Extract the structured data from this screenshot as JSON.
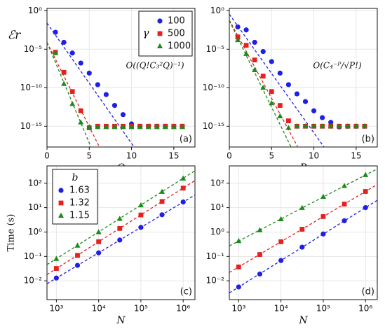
{
  "chart_data": [
    {
      "type": "scatter",
      "xlabel": "Q",
      "ylabel": "ℰr",
      "panel_label": "(a)",
      "annotation": "O((Q!C₃²Q)⁻¹)",
      "xlim": [
        0,
        17.5
      ],
      "xticks": [
        0,
        5,
        10,
        15
      ],
      "ylog": true,
      "ylim": [
        2e-18,
        2
      ],
      "yticks": [
        {
          "value": 1,
          "label": "10⁰"
        },
        {
          "value": 1e-05,
          "label": "10⁻⁵"
        },
        {
          "value": 1e-10,
          "label": "10⁻¹⁰"
        },
        {
          "value": 1e-15,
          "label": "10⁻¹⁵"
        }
      ],
      "grid": true,
      "legend": {
        "title": "γ",
        "corner": "upper right"
      },
      "x": [
        1,
        2,
        3,
        4,
        5,
        6,
        7,
        8,
        9,
        10,
        11,
        12,
        13,
        14,
        15,
        16
      ],
      "series": [
        {
          "name": "100",
          "color": "#1f1fe6",
          "marker": "circle",
          "values": [
            0.0016,
            7.9e-05,
            3.2e-06,
            1.6e-07,
            7.9e-09,
            2.5e-10,
            1.3e-11,
            5e-13,
            3.2e-14,
            2e-15,
            1e-15,
            1e-15,
            1e-15,
            1e-15,
            1e-15,
            1e-15
          ]
        },
        {
          "name": "500",
          "color": "#e61f1f",
          "marker": "square",
          "values": [
            4e-06,
            1e-08,
            3.2e-11,
            1e-13,
            6.3e-16,
            1e-15,
            1e-15,
            1e-15,
            1e-15,
            1e-15,
            1e-15,
            1e-15,
            1e-15,
            1e-15,
            1e-15,
            1e-15
          ]
        },
        {
          "name": "1000",
          "color": "#1a8a1a",
          "marker": "triangle",
          "values": [
            3.2e-06,
            3.2e-10,
            7.9e-13,
            3.2e-15,
            8e-16,
            8e-16,
            8e-16,
            8e-16,
            8e-16,
            8e-16,
            8e-16,
            8e-16,
            8e-16,
            8e-16,
            8e-16,
            8e-16
          ]
        }
      ],
      "fits": [
        {
          "color": "#1f1fe6",
          "x": [
            0,
            10.3
          ],
          "values": [
            0.025,
            2e-18
          ]
        },
        {
          "color": "#e61f1f",
          "x": [
            0,
            6.2
          ],
          "values": [
            7.9e-05,
            2e-18
          ]
        },
        {
          "color": "#1a8a1a",
          "x": [
            0,
            5.2
          ],
          "values": [
            7.9e-05,
            2e-18
          ]
        }
      ]
    },
    {
      "type": "scatter",
      "xlabel": "P",
      "panel_label": "(b)",
      "annotation": "O(C₄⁻ᴾ/√P!)",
      "xlim": [
        0,
        17.5
      ],
      "xticks": [
        0,
        5,
        10,
        15
      ],
      "ylog": true,
      "ylim": [
        2e-18,
        2
      ],
      "yticks": [
        {
          "value": 1,
          "label": "10⁰"
        },
        {
          "value": 1e-05,
          "label": "10⁻⁵"
        },
        {
          "value": 1e-10,
          "label": "10⁻¹⁰"
        },
        {
          "value": 1e-15,
          "label": "10⁻¹⁵"
        }
      ],
      "grid": true,
      "x": [
        1,
        2,
        3,
        4,
        5,
        6,
        7,
        8,
        9,
        10,
        11,
        12,
        13,
        14,
        15,
        16
      ],
      "series": [
        {
          "color": "#1f1fe6",
          "marker": "circle",
          "values": [
            0.0079,
            0.0032,
            7.9e-05,
            5e-06,
            2.5e-07,
            7.9e-09,
            2.5e-10,
            1.6e-11,
            1.6e-12,
            1e-13,
            1.3e-14,
            3.2e-15,
            8e-16,
            1e-15,
            1e-15,
            1e-15
          ]
        },
        {
          "color": "#e61f1f",
          "marker": "square",
          "values": [
            0.0004,
            3.2e-05,
            4e-07,
            3.2e-09,
            3.2e-11,
            5e-13,
            5e-15,
            1e-15,
            1e-15,
            1e-15,
            1e-15,
            1e-15,
            1e-15,
            1e-15,
            1e-15,
            1e-15
          ]
        },
        {
          "color": "#1a8a1a",
          "marker": "triangle",
          "values": [
            0.00016,
            2.5e-06,
            2e-08,
            1e-10,
            1e-12,
            2e-14,
            6.3e-16,
            1e-15,
            1e-15,
            1e-15,
            1e-15,
            1e-15,
            1e-15,
            1e-15,
            1e-15,
            1e-15
          ]
        }
      ],
      "fits": [
        {
          "color": "#1f1fe6",
          "x": [
            0,
            11.2
          ],
          "values": [
            0.35,
            2e-18
          ]
        },
        {
          "color": "#e61f1f",
          "x": [
            0,
            8.1
          ],
          "values": [
            0.063,
            2e-18
          ]
        },
        {
          "color": "#1a8a1a",
          "x": [
            0,
            7.3
          ],
          "values": [
            0.05,
            2e-18
          ]
        }
      ]
    },
    {
      "type": "scatter",
      "xlabel": "N",
      "ylabel": "Time (s)",
      "panel_label": "(c)",
      "xlog": true,
      "xlim": [
        600,
        1900000
      ],
      "xticks": [
        {
          "value": 1000,
          "label": "10³"
        },
        {
          "value": 10000,
          "label": "10⁴"
        },
        {
          "value": 100000,
          "label": "10⁵"
        },
        {
          "value": 1000000,
          "label": "10⁶"
        }
      ],
      "ylog": true,
      "ylim": [
        0.0017,
        513
      ],
      "yticks": [
        {
          "value": 0.01,
          "label": "10⁻²"
        },
        {
          "value": 0.1,
          "label": "10⁻¹"
        },
        {
          "value": 1,
          "label": "10⁰"
        },
        {
          "value": 10,
          "label": "10¹"
        },
        {
          "value": 100,
          "label": "10²"
        }
      ],
      "grid": true,
      "legend": {
        "title": "b",
        "corner": "upper left"
      },
      "x": [
        1000,
        3162,
        10000,
        31623,
        100000,
        316228,
        1000000
      ],
      "series": [
        {
          "name": "1.63",
          "color": "#1f1fe6",
          "marker": "circle",
          "values": [
            0.013,
            0.043,
            0.14,
            0.47,
            1.55,
            5.1,
            17
          ]
        },
        {
          "name": "1.32",
          "color": "#e61f1f",
          "marker": "square",
          "values": [
            0.032,
            0.11,
            0.4,
            1.4,
            5.0,
            17.8,
            63
          ]
        },
        {
          "name": "1.15",
          "color": "#1a8a1a",
          "marker": "triangle",
          "values": [
            0.08,
            0.28,
            1.0,
            3.5,
            12.6,
            45,
            158
          ]
        }
      ],
      "fits": [
        {
          "color": "#1f1fe6",
          "x": [
            600,
            1900000
          ],
          "values": [
            0.0076,
            33
          ]
        },
        {
          "color": "#e61f1f",
          "x": [
            600,
            1900000
          ],
          "values": [
            0.018,
            129
          ]
        },
        {
          "color": "#1a8a1a",
          "x": [
            600,
            1900000
          ],
          "values": [
            0.046,
            324
          ]
        }
      ]
    },
    {
      "type": "scatter",
      "xlabel": "N",
      "panel_label": "(d)",
      "xlog": true,
      "xlim": [
        600,
        1900000
      ],
      "xticks": [
        {
          "value": 1000,
          "label": "10³"
        },
        {
          "value": 10000,
          "label": "10⁴"
        },
        {
          "value": 100000,
          "label": "10⁵"
        },
        {
          "value": 1000000,
          "label": "10⁶"
        }
      ],
      "ylog": true,
      "ylim": [
        0.0017,
        513
      ],
      "yticks": [
        {
          "value": 0.01,
          "label": "10⁻²"
        },
        {
          "value": 0.1,
          "label": "10⁻¹"
        },
        {
          "value": 1,
          "label": "10⁰"
        },
        {
          "value": 10,
          "label": "10¹"
        },
        {
          "value": 100,
          "label": "10²"
        }
      ],
      "grid": true,
      "x": [
        1000,
        3162,
        10000,
        31623,
        100000,
        316228,
        1000000
      ],
      "series": [
        {
          "color": "#1f1fe6",
          "marker": "circle",
          "values": [
            0.0056,
            0.019,
            0.068,
            0.24,
            0.83,
            2.9,
            10
          ]
        },
        {
          "color": "#e61f1f",
          "marker": "square",
          "values": [
            0.037,
            0.12,
            0.4,
            1.3,
            4.3,
            14,
            46
          ]
        },
        {
          "color": "#1a8a1a",
          "marker": "triangle",
          "values": [
            0.43,
            1.2,
            3.4,
            9.8,
            28,
            78,
            219
          ]
        }
      ],
      "fits": [
        {
          "color": "#1f1fe6",
          "x": [
            600,
            1900000
          ],
          "values": [
            0.0032,
            20
          ]
        },
        {
          "color": "#e61f1f",
          "x": [
            600,
            1900000
          ],
          "values": [
            0.022,
            89
          ]
        },
        {
          "color": "#1a8a1a",
          "x": [
            600,
            1900000
          ],
          "values": [
            0.27,
            389
          ]
        }
      ]
    }
  ]
}
